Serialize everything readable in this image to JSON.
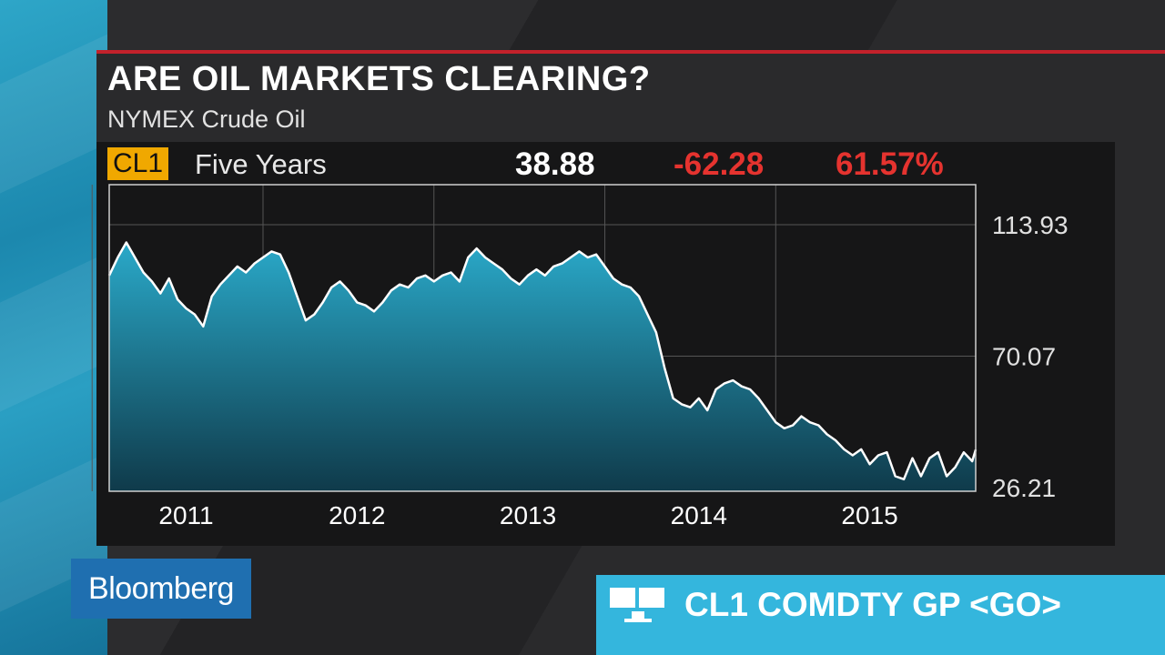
{
  "header": {
    "title": "ARE OIL MARKETS CLEARING?",
    "subtitle": "NYMEX Crude Oil"
  },
  "quote": {
    "ticker": "CL1",
    "period": "Five Years",
    "last": "38.88",
    "change": "-62.28",
    "change_pct": "61.57%"
  },
  "branding": {
    "logo_text": "Bloomberg",
    "command": "CL1 COMDTY GP <GO>"
  },
  "colors": {
    "accent_red": "#c3212b",
    "badge": "#f0a800",
    "down": "#e5332f",
    "area_top": "#2aa9c9",
    "area_bottom": "#0f3a4a",
    "line": "#ffffff",
    "command_bar": "#34b6dd",
    "logo_bg": "#1f6fb0"
  },
  "chart_data": {
    "type": "area",
    "title": "",
    "xlabel": "",
    "ylabel": "",
    "ylim": [
      26.21,
      113.93
    ],
    "xlim": [
      2010.55,
      2015.62
    ],
    "yticks": [
      {
        "label": "113.93",
        "value": 113.93
      },
      {
        "label": "70.07",
        "value": 70.07
      },
      {
        "label": "26.21",
        "value": 26.21
      }
    ],
    "xticks": [
      {
        "label": "2011",
        "value": 2011.0
      },
      {
        "label": "2012",
        "value": 2012.0
      },
      {
        "label": "2013",
        "value": 2013.0
      },
      {
        "label": "2014",
        "value": 2014.0
      },
      {
        "label": "2015",
        "value": 2015.0
      }
    ],
    "grid": true,
    "legend": "none",
    "series": [
      {
        "x": [
          2010.55,
          2010.6,
          2010.65,
          2010.7,
          2010.75,
          2010.8,
          2010.85,
          2010.9,
          2010.95,
          2011.0,
          2011.05,
          2011.1,
          2011.15,
          2011.2,
          2011.25,
          2011.3,
          2011.35,
          2011.4,
          2011.45,
          2011.5,
          2011.55,
          2011.6,
          2011.65,
          2011.7,
          2011.75,
          2011.8,
          2011.85,
          2011.9,
          2011.95,
          2012.0,
          2012.05,
          2012.1,
          2012.15,
          2012.2,
          2012.25,
          2012.3,
          2012.35,
          2012.4,
          2012.45,
          2012.5,
          2012.55,
          2012.6,
          2012.65,
          2012.7,
          2012.75,
          2012.8,
          2012.85,
          2012.9,
          2012.95,
          2013.0,
          2013.05,
          2013.1,
          2013.15,
          2013.2,
          2013.25,
          2013.3,
          2013.35,
          2013.4,
          2013.45,
          2013.5,
          2013.55,
          2013.6,
          2013.65,
          2013.7,
          2013.75,
          2013.8,
          2013.85,
          2013.9,
          2013.95,
          2014.0,
          2014.05,
          2014.1,
          2014.15,
          2014.2,
          2014.25,
          2014.3,
          2014.35,
          2014.4,
          2014.45,
          2014.5,
          2014.55,
          2014.6,
          2014.65,
          2014.7,
          2014.75,
          2014.8,
          2014.85,
          2014.9,
          2014.95,
          2015.0,
          2015.05,
          2015.1,
          2015.15,
          2015.2,
          2015.25,
          2015.3,
          2015.35,
          2015.4,
          2015.45,
          2015.5,
          2015.55,
          2015.6,
          2015.62
        ],
        "values": [
          97,
          103,
          108,
          103,
          98,
          95,
          91,
          96,
          89,
          86,
          84,
          80,
          90,
          94,
          97,
          100,
          98,
          101,
          103,
          105,
          104,
          98,
          90,
          82,
          84,
          88,
          93,
          95,
          92,
          88,
          87,
          85,
          88,
          92,
          94,
          93,
          96,
          97,
          95,
          97,
          98,
          95,
          103,
          106,
          103,
          101,
          99,
          96,
          94,
          97,
          99,
          97,
          100,
          101,
          103,
          105,
          103,
          104,
          100,
          96,
          94,
          93,
          90,
          84,
          78,
          66,
          56,
          54,
          53,
          56,
          52,
          59,
          61,
          62,
          60,
          59,
          56,
          52,
          48,
          46,
          47,
          50,
          48,
          47,
          44,
          42,
          39,
          37,
          39,
          34,
          37,
          38,
          30,
          29,
          36,
          30,
          36,
          38,
          30,
          33,
          38,
          35,
          38.88
        ]
      }
    ]
  }
}
